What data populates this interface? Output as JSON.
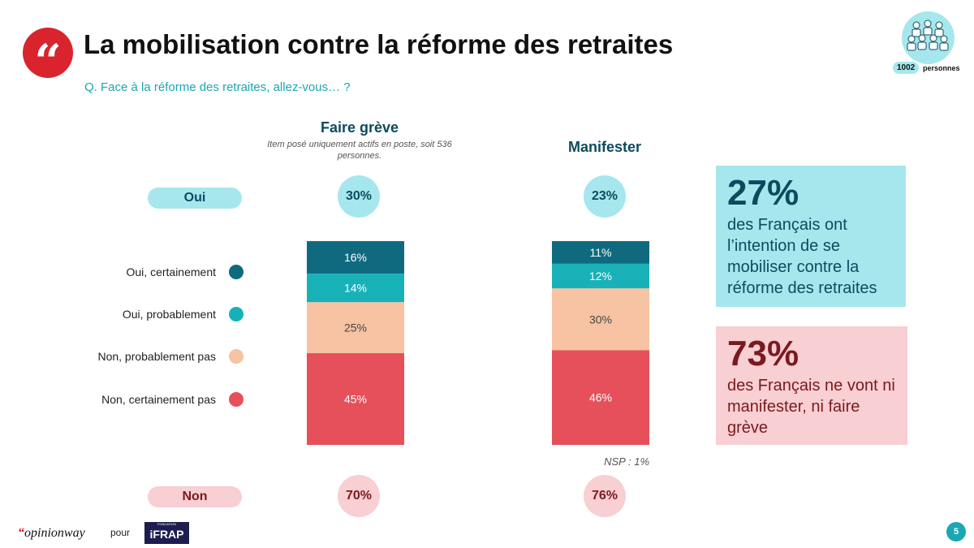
{
  "header": {
    "quote_mark": "“",
    "title": "La mobilisation contre la réforme des retraites",
    "subtitle": "Q. Face à la réforme des retraites, allez-vous… ?"
  },
  "sample": {
    "count": "1002",
    "label": "personnes",
    "icon": "people-group-icon"
  },
  "legend": [
    {
      "label": "Oui, certainement",
      "color": "#0f6a80"
    },
    {
      "label": "Oui, probablement",
      "color": "#19b1b8"
    },
    {
      "label": "Non, probablement pas",
      "color": "#f7c3a2"
    },
    {
      "label": "Non, certainement pas",
      "color": "#e6505a"
    }
  ],
  "rows": {
    "oui_label": "Oui",
    "non_label": "Non"
  },
  "chart_data": {
    "type": "bar",
    "stacked": true,
    "categories": [
      "Faire grève",
      "Manifester"
    ],
    "category_notes": [
      "Item posé uniquement actifs en poste, soit 536 personnes.",
      ""
    ],
    "series": [
      {
        "name": "Oui, certainement",
        "values": [
          16,
          11
        ],
        "labels": [
          "16%",
          "11%"
        ],
        "color": "#0f6a80"
      },
      {
        "name": "Oui, probablement",
        "values": [
          14,
          12
        ],
        "labels": [
          "14%",
          "12%"
        ],
        "color": "#19b1b8"
      },
      {
        "name": "Non, probablement pas",
        "values": [
          25,
          30
        ],
        "labels": [
          "25%",
          "30%"
        ],
        "color": "#f7c3a2"
      },
      {
        "name": "Non, certainement pas",
        "values": [
          45,
          46
        ],
        "labels": [
          "45%",
          "46%"
        ],
        "color": "#e6505a"
      }
    ],
    "totals_oui": [
      "30%",
      "23%"
    ],
    "totals_non": [
      "70%",
      "76%"
    ],
    "annotation": "NSP : 1%",
    "ylim": [
      0,
      100
    ]
  },
  "insights": [
    {
      "value": "27%",
      "text": "des Français ont l’intention de se mobiliser contre la réforme des retraites"
    },
    {
      "value": "73%",
      "text": "des Français ne vont ni manifester, ni faire grève"
    }
  ],
  "footer": {
    "brand_prefix": "“",
    "brand": "opinionway",
    "pour": "pour",
    "partner_small": "FONDATION",
    "partner": "iFRAP",
    "page_number": "5"
  },
  "colors": {
    "accent_red": "#d9232d",
    "teal": "#1ba7b4",
    "light_teal": "#a6e7ee",
    "light_pink": "#f8cfd2",
    "dark_red": "#7a1a1e",
    "dark_navy": "#0e4a5e"
  }
}
